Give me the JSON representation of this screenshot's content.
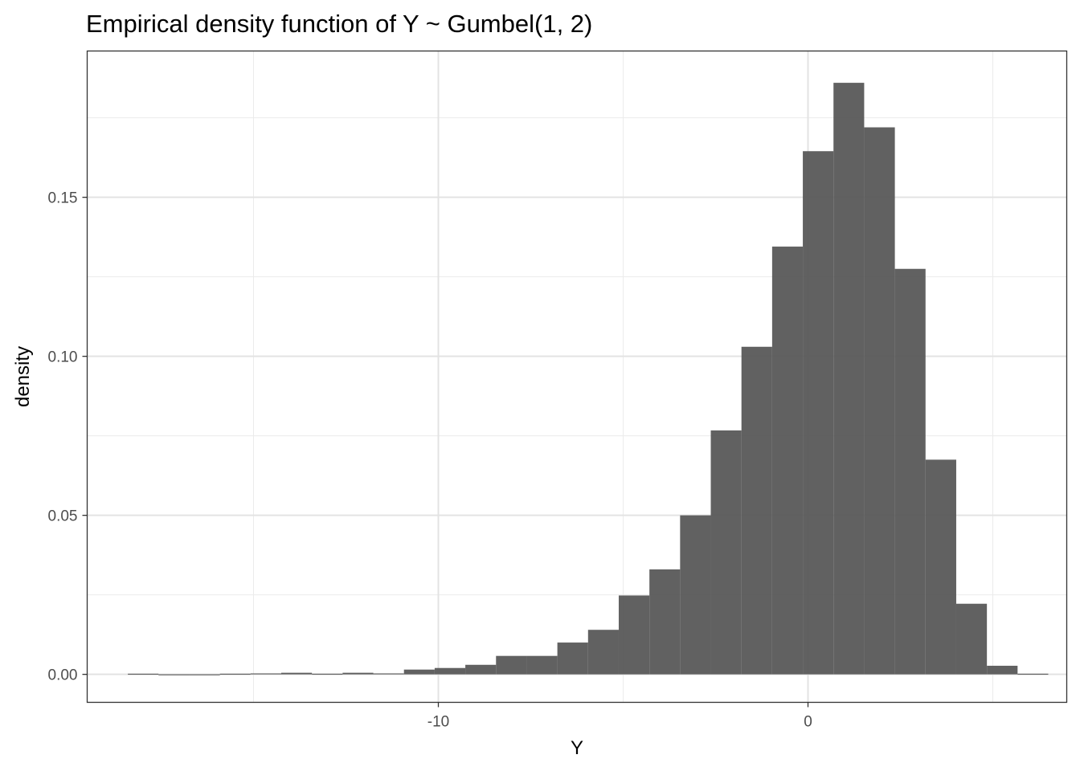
{
  "chart_data": {
    "type": "bar",
    "title": "Empirical density function of Y ~ Gumbel(1, 2)",
    "xlabel": "Y",
    "ylabel": "density",
    "xlim": [
      -19.5,
      7.0
    ],
    "ylim": [
      -0.0088,
      0.196
    ],
    "x_ticks": [
      {
        "value": -10,
        "label": "-10"
      },
      {
        "value": 0,
        "label": "0"
      }
    ],
    "x_minor_gridlines": [
      -15,
      -5,
      5
    ],
    "y_ticks": [
      {
        "value": 0.0,
        "label": "0.00"
      },
      {
        "value": 0.05,
        "label": "0.05"
      },
      {
        "value": 0.1,
        "label": "0.10"
      },
      {
        "value": 0.15,
        "label": "0.15"
      }
    ],
    "y_minor_gridlines": [
      0.025,
      0.075,
      0.125,
      0.175
    ],
    "grid": true,
    "bar_color": "#595959",
    "bins": [
      {
        "x0": -18.4,
        "x1": -17.57,
        "density": 0.0002
      },
      {
        "x0": -17.57,
        "x1": -16.74,
        "density": 0.0
      },
      {
        "x0": -16.74,
        "x1": -15.91,
        "density": 0.0
      },
      {
        "x0": -15.91,
        "x1": -15.08,
        "density": 0.0002
      },
      {
        "x0": -15.08,
        "x1": -14.25,
        "density": 0.0003
      },
      {
        "x0": -14.25,
        "x1": -13.42,
        "density": 0.0005
      },
      {
        "x0": -13.42,
        "x1": -12.59,
        "density": 0.0002
      },
      {
        "x0": -12.59,
        "x1": -11.76,
        "density": 0.0005
      },
      {
        "x0": -11.76,
        "x1": -10.93,
        "density": 0.0003
      },
      {
        "x0": -10.93,
        "x1": -10.1,
        "density": 0.0015
      },
      {
        "x0": -10.1,
        "x1": -9.27,
        "density": 0.002
      },
      {
        "x0": -9.27,
        "x1": -8.44,
        "density": 0.003
      },
      {
        "x0": -8.44,
        "x1": -7.61,
        "density": 0.0058
      },
      {
        "x0": -7.61,
        "x1": -6.78,
        "density": 0.0058
      },
      {
        "x0": -6.78,
        "x1": -5.95,
        "density": 0.01
      },
      {
        "x0": -5.95,
        "x1": -5.12,
        "density": 0.014
      },
      {
        "x0": -5.12,
        "x1": -4.29,
        "density": 0.0248
      },
      {
        "x0": -4.29,
        "x1": -3.46,
        "density": 0.033
      },
      {
        "x0": -3.46,
        "x1": -2.63,
        "density": 0.05
      },
      {
        "x0": -2.63,
        "x1": -1.8,
        "density": 0.0767
      },
      {
        "x0": -1.8,
        "x1": -0.97,
        "density": 0.103
      },
      {
        "x0": -0.97,
        "x1": -0.14,
        "density": 0.1345
      },
      {
        "x0": -0.14,
        "x1": 0.69,
        "density": 0.1645
      },
      {
        "x0": 0.69,
        "x1": 1.52,
        "density": 0.186
      },
      {
        "x0": 1.52,
        "x1": 2.35,
        "density": 0.172
      },
      {
        "x0": 2.35,
        "x1": 3.18,
        "density": 0.1275
      },
      {
        "x0": 3.18,
        "x1": 4.01,
        "density": 0.0675
      },
      {
        "x0": 4.01,
        "x1": 4.84,
        "density": 0.0222
      },
      {
        "x0": 4.84,
        "x1": 5.67,
        "density": 0.0027
      },
      {
        "x0": 5.67,
        "x1": 6.5,
        "density": 0.0002
      }
    ]
  }
}
